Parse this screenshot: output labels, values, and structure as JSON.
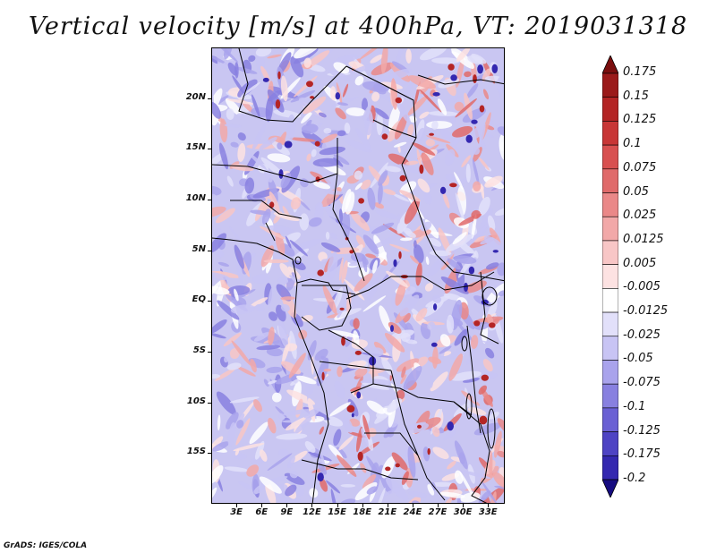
{
  "title": "Vertical velocity [m/s] at 400hPa, VT: 2019031318",
  "footer": "GrADS: IGES/COLA",
  "map": {
    "projection": "latlon",
    "lon_range": [
      0,
      35
    ],
    "lat_range": [
      -20,
      25
    ],
    "lat_ticks": [
      {
        "value": 20,
        "label": "20N"
      },
      {
        "value": 15,
        "label": "15N"
      },
      {
        "value": 10,
        "label": "10N"
      },
      {
        "value": 5,
        "label": "5N"
      },
      {
        "value": 0,
        "label": "EQ"
      },
      {
        "value": -5,
        "label": "5S"
      },
      {
        "value": -10,
        "label": "10S"
      },
      {
        "value": -15,
        "label": "15S"
      }
    ],
    "lon_ticks": [
      {
        "value": 3,
        "label": "3E"
      },
      {
        "value": 6,
        "label": "6E"
      },
      {
        "value": 9,
        "label": "9E"
      },
      {
        "value": 12,
        "label": "12E"
      },
      {
        "value": 15,
        "label": "15E"
      },
      {
        "value": 18,
        "label": "18E"
      },
      {
        "value": 21,
        "label": "21E"
      },
      {
        "value": 24,
        "label": "24E"
      },
      {
        "value": 27,
        "label": "27E"
      },
      {
        "value": 30,
        "label": "30E"
      },
      {
        "value": 33,
        "label": "33E"
      }
    ]
  },
  "colorbar": {
    "levels": [
      {
        "label": "0.175",
        "color": "#9b1a1a"
      },
      {
        "label": "0.15",
        "color": "#b42525"
      },
      {
        "label": "0.125",
        "color": "#c83636"
      },
      {
        "label": "0.1",
        "color": "#d85050"
      },
      {
        "label": "0.075",
        "color": "#e06a6a"
      },
      {
        "label": "0.05",
        "color": "#ea8888"
      },
      {
        "label": "0.025",
        "color": "#f2a8a8"
      },
      {
        "label": "0.0125",
        "color": "#f8c6c6"
      },
      {
        "label": "0.005",
        "color": "#fde2e2"
      },
      {
        "label": "-0.005",
        "color": "#ffffff"
      },
      {
        "label": "-0.0125",
        "color": "#e2e0fa"
      },
      {
        "label": "-0.025",
        "color": "#c8c4f4"
      },
      {
        "label": "-0.05",
        "color": "#a9a3ec"
      },
      {
        "label": "-0.075",
        "color": "#8880e0"
      },
      {
        "label": "-0.1",
        "color": "#6a60d4"
      },
      {
        "label": "-0.125",
        "color": "#4e43c4"
      },
      {
        "label": "-0.175",
        "color": "#3428b0"
      },
      {
        "label": "-0.2",
        "color": "#1f1498"
      }
    ],
    "top_cap_color": "#7a0e0e",
    "bottom_cap_color": "#160c80"
  }
}
